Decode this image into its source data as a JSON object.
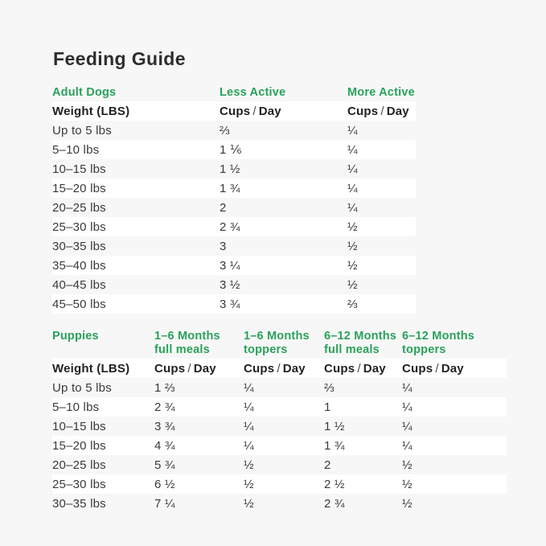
{
  "page": {
    "title": "Feeding Guide",
    "colors": {
      "accent_green": "#2aa15b",
      "page_background": "#f7f7f7",
      "stripe_white": "#ffffff",
      "title_text": "#2d2d2d",
      "body_text": "#3a3a3a"
    }
  },
  "labels": {
    "cups": "Cups",
    "slash": "/",
    "day": "Day",
    "weight_lbs": "Weight (LBS)"
  },
  "adult_table": {
    "title": "Adult Dogs",
    "col_headers": [
      "Less Active",
      "More Active"
    ],
    "rows": [
      [
        "Up to 5 lbs",
        "⅔",
        "¼"
      ],
      [
        "5–10 lbs",
        "1 ⅙",
        "¼"
      ],
      [
        "10–15 lbs",
        "1 ½",
        "¼"
      ],
      [
        "15–20 lbs",
        "1 ¾",
        "¼"
      ],
      [
        "20–25 lbs",
        "2",
        "¼"
      ],
      [
        "25–30 lbs",
        "2 ¾",
        "½"
      ],
      [
        "30–35 lbs",
        "3",
        "½"
      ],
      [
        "35–40 lbs",
        "3 ¼",
        "½"
      ],
      [
        "40–45 lbs",
        "3 ½",
        "½"
      ],
      [
        "45–50 lbs",
        "3 ¾",
        "⅔"
      ]
    ]
  },
  "puppy_table": {
    "title": "Puppies",
    "col_headers": [
      {
        "line1": "1–6 Months",
        "line2": "full meals"
      },
      {
        "line1": "1–6 Months",
        "line2": "toppers"
      },
      {
        "line1": "6–12 Months",
        "line2": "full meals"
      },
      {
        "line1": "6–12 Months",
        "line2": "toppers"
      }
    ],
    "rows": [
      [
        "Up to 5 lbs",
        "1 ⅔",
        "¼",
        "⅔",
        "¼"
      ],
      [
        "5–10 lbs",
        "2 ¾",
        "¼",
        "1",
        "¼"
      ],
      [
        "10–15 lbs",
        "3 ¾",
        "¼",
        "1 ½",
        "¼"
      ],
      [
        "15–20 lbs",
        "4 ¾",
        "¼",
        "1 ¾",
        "¼"
      ],
      [
        "20–25 lbs",
        "5 ¾",
        "½",
        "2",
        "½"
      ],
      [
        "25–30 lbs",
        "6 ½",
        "½",
        "2 ½",
        "½"
      ],
      [
        "30–35 lbs",
        "7 ¼",
        "½",
        "2 ¾",
        "½"
      ]
    ]
  }
}
